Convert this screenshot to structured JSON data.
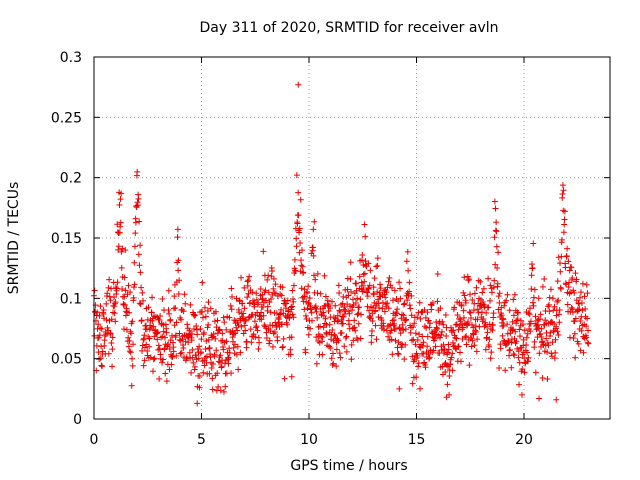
{
  "chart_data": {
    "type": "scatter",
    "title": "Day 311 of 2020, SRMTID for receiver avln",
    "xlabel": "GPS time / hours",
    "ylabel": "SRMTID / TECUs",
    "xlim": [
      0,
      24
    ],
    "ylim": [
      0,
      0.3
    ],
    "xticks": [
      0,
      5,
      10,
      15,
      20
    ],
    "xtick_labels": [
      "0",
      "5",
      "10",
      "15",
      "20"
    ],
    "yticks": [
      0,
      0.05,
      0.1,
      0.15,
      0.2,
      0.25,
      0.3
    ],
    "ytick_labels": [
      "0",
      "0.05",
      "0.1",
      "0.15",
      "0.2",
      "0.25",
      "0.3"
    ],
    "grid": true,
    "marker": "+",
    "color": "#ee0000",
    "series": [
      {
        "name": "SRMTID",
        "x_range": [
          0,
          23
        ],
        "x_step": 0.015,
        "trend": [
          [
            0.0,
            0.075
          ],
          [
            0.3,
            0.065
          ],
          [
            0.7,
            0.085
          ],
          [
            1.0,
            0.095
          ],
          [
            1.2,
            0.11
          ],
          [
            1.5,
            0.095
          ],
          [
            1.8,
            0.06
          ],
          [
            2.0,
            0.11
          ],
          [
            2.3,
            0.07
          ],
          [
            3.0,
            0.065
          ],
          [
            4.0,
            0.065
          ],
          [
            5.0,
            0.065
          ],
          [
            6.0,
            0.06
          ],
          [
            7.0,
            0.085
          ],
          [
            8.0,
            0.09
          ],
          [
            9.0,
            0.08
          ],
          [
            9.5,
            0.1
          ],
          [
            10.0,
            0.085
          ],
          [
            11.0,
            0.075
          ],
          [
            12.0,
            0.09
          ],
          [
            13.0,
            0.1
          ],
          [
            14.0,
            0.085
          ],
          [
            15.0,
            0.065
          ],
          [
            16.0,
            0.075
          ],
          [
            16.5,
            0.05
          ],
          [
            17.0,
            0.08
          ],
          [
            18.0,
            0.09
          ],
          [
            19.0,
            0.075
          ],
          [
            19.5,
            0.07
          ],
          [
            20.0,
            0.055
          ],
          [
            20.5,
            0.07
          ],
          [
            21.0,
            0.07
          ],
          [
            21.5,
            0.08
          ],
          [
            22.0,
            0.115
          ],
          [
            22.5,
            0.08
          ],
          [
            23.0,
            0.085
          ]
        ],
        "spikes": [
          {
            "x": 2.0,
            "y": 0.22,
            "width": 0.12
          },
          {
            "x": 9.5,
            "y": 0.19,
            "width": 0.15
          },
          {
            "x": 21.8,
            "y": 0.19,
            "width": 0.12
          },
          {
            "x": 1.2,
            "y": 0.175,
            "width": 0.12
          },
          {
            "x": 18.7,
            "y": 0.17,
            "width": 0.1
          },
          {
            "x": 3.9,
            "y": 0.14,
            "width": 0.08
          },
          {
            "x": 14.6,
            "y": 0.14,
            "width": 0.08
          },
          {
            "x": 20.4,
            "y": 0.14,
            "width": 0.08
          },
          {
            "x": 12.6,
            "y": 0.135,
            "width": 0.15
          },
          {
            "x": 10.2,
            "y": 0.15,
            "width": 0.1
          }
        ],
        "outliers": [
          {
            "x": 9.5,
            "y": 0.277
          },
          {
            "x": 4.8,
            "y": 0.013
          },
          {
            "x": 20.7,
            "y": 0.017
          },
          {
            "x": 21.5,
            "y": 0.016
          },
          {
            "x": 9.2,
            "y": 0.035
          },
          {
            "x": 16.4,
            "y": 0.018
          },
          {
            "x": 14.2,
            "y": 0.025
          }
        ]
      }
    ]
  }
}
